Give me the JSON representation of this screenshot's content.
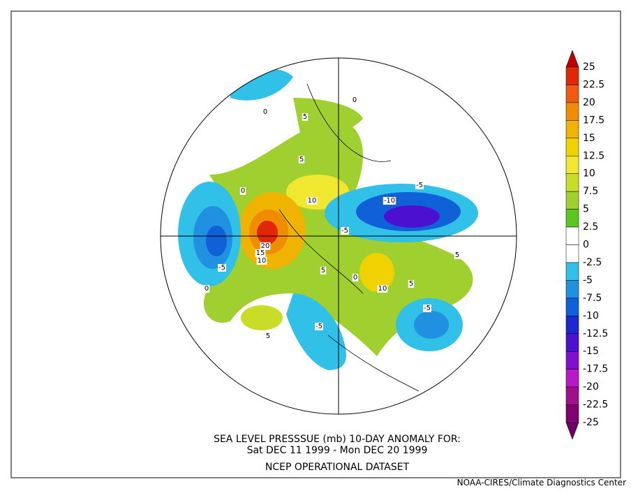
{
  "title_lines": [
    "SEA LEVEL PRESSSUE (mb)   10-DAY ANOMALY FOR:",
    "Sat DEC 11 1999 - Mon DEC 20 1999",
    "NCEP OPERATIONAL DATASET"
  ],
  "credit": "NOAA-CIRES/Climate Diagnostics Center",
  "colorbar": {
    "levels": [
      25,
      22.5,
      20,
      17.5,
      15,
      12.5,
      10,
      7.5,
      5,
      2.5,
      0,
      -2.5,
      -5,
      -7.5,
      -10,
      -12.5,
      -15,
      -17.5,
      -20,
      -22.5,
      -25
    ],
    "colors": [
      "#e02808",
      "#f05a10",
      "#f08c00",
      "#f0b400",
      "#f0d200",
      "#f0e830",
      "#c8dc28",
      "#a0d030",
      "#58c820",
      "#ffffff",
      "#ffffff",
      "#30c0e8",
      "#2090e0",
      "#1060d8",
      "#1c28d0",
      "#4c10d0",
      "#8010d0",
      "#b818c8",
      "#a0108c",
      "#800070"
    ],
    "over_color": "#c00000",
    "under_color": "#6a0068"
  },
  "contour_labels": [
    0,
    5,
    5,
    0,
    10,
    20,
    15,
    10,
    -5,
    0,
    5,
    -5,
    -10,
    -5,
    -5,
    5,
    0,
    10,
    5,
    -5,
    0,
    5
  ]
}
